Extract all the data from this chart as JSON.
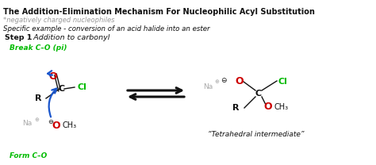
{
  "bg_color": "#ffffff",
  "title": "The Addition-Elimination Mechanism For Nucleophilic Acyl Substitution",
  "subtitle": "*negatively charged nucleophiles",
  "specific": "Specific example - conversion of an acid halide into an ester",
  "step_bold": "Step 1",
  "step_italic": ": Addition to carbonyl",
  "break_label": "Break C–O (pi)",
  "form_label": "Form C–O",
  "tetrahedral": "“Tetrahedral intermediate”",
  "green": "#00bb00",
  "red": "#cc0000",
  "blue": "#1a56cc",
  "black": "#111111",
  "gray": "#aaaaaa"
}
